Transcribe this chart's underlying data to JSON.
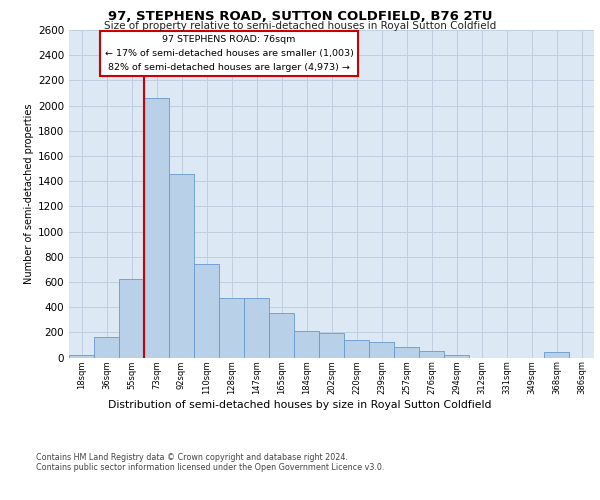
{
  "title": "97, STEPHENS ROAD, SUTTON COLDFIELD, B76 2TU",
  "subtitle": "Size of property relative to semi-detached houses in Royal Sutton Coldfield",
  "xlabel_bottom": "Distribution of semi-detached houses by size in Royal Sutton Coldfield",
  "ylabel": "Number of semi-detached properties",
  "footer1": "Contains HM Land Registry data © Crown copyright and database right 2024.",
  "footer2": "Contains public sector information licensed under the Open Government Licence v3.0.",
  "bar_color": "#b8d0e8",
  "bar_edgecolor": "#6699cc",
  "grid_color": "#c0cfe0",
  "background_color": "#dce8f4",
  "annotation_box_color": "#ffffff",
  "annotation_border_color": "#cc0000",
  "red_line_color": "#cc0000",
  "property_bin_index": 3,
  "annotation_text_line1": "97 STEPHENS ROAD: 76sqm",
  "annotation_text_line2": "← 17% of semi-detached houses are smaller (1,003)",
  "annotation_text_line3": "82% of semi-detached houses are larger (4,973) →",
  "categories": [
    "18sqm",
    "36sqm",
    "55sqm",
    "73sqm",
    "92sqm",
    "110sqm",
    "128sqm",
    "147sqm",
    "165sqm",
    "184sqm",
    "202sqm",
    "220sqm",
    "239sqm",
    "257sqm",
    "276sqm",
    "294sqm",
    "312sqm",
    "331sqm",
    "349sqm",
    "368sqm",
    "386sqm"
  ],
  "bar_heights": [
    18,
    160,
    620,
    2060,
    1460,
    740,
    470,
    470,
    350,
    210,
    195,
    140,
    120,
    85,
    50,
    18,
    0,
    0,
    0,
    45,
    0
  ],
  "ylim": [
    0,
    2600
  ],
  "yticks": [
    0,
    200,
    400,
    600,
    800,
    1000,
    1200,
    1400,
    1600,
    1800,
    2000,
    2200,
    2400,
    2600
  ]
}
